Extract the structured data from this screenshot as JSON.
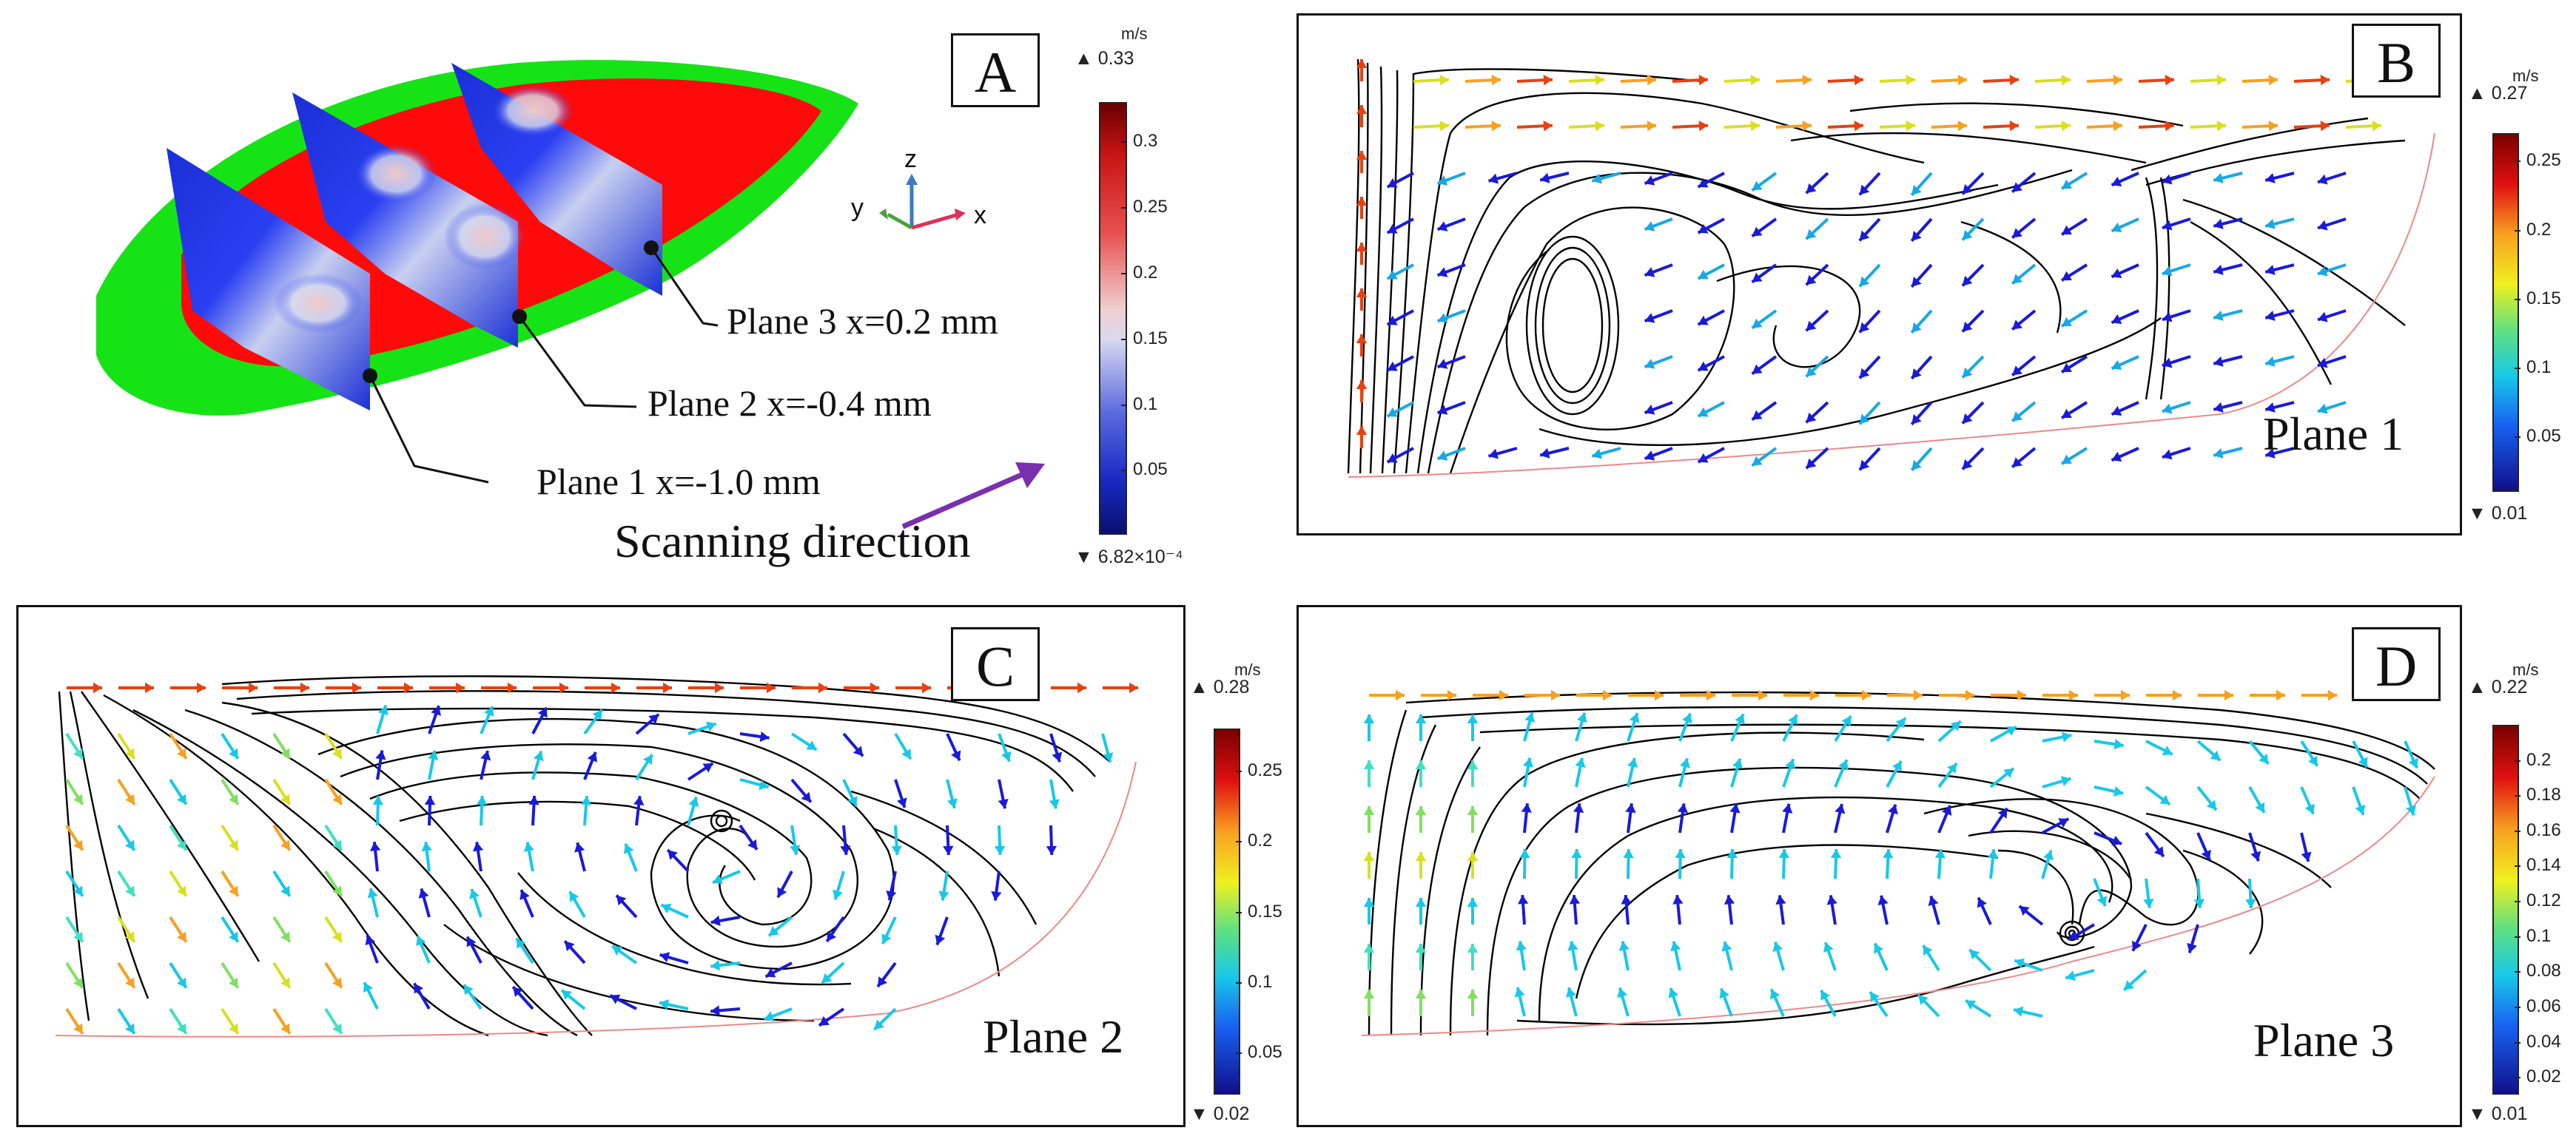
{
  "panel_a": {
    "letter": "A",
    "annotations": {
      "plane1": "Plane 1 x=-1.0 mm",
      "plane2": "Plane 2 x=-0.4 mm",
      "plane3": "Plane 3 x=0.2 mm"
    },
    "scanning_direction": "Scanning direction",
    "axes": {
      "x": "x",
      "y": "y",
      "z": "z"
    },
    "colorbar": {
      "unit": "m/s",
      "max": "▲ 0.33",
      "min": "▼ 6.82×10⁻⁴",
      "ticks": [
        "0.3",
        "0.25",
        "0.2",
        "0.15",
        "0.1",
        "0.05"
      ],
      "tick_values": [
        0.3,
        0.25,
        0.2,
        0.15,
        0.1,
        0.05
      ],
      "range": [
        0.000682,
        0.33
      ],
      "palette": "thermal-wave"
    },
    "colors": {
      "pool_outer": "#16e316",
      "pool_inner": "#ff0a0a",
      "arrow": "#7a2fb0"
    }
  },
  "panel_b": {
    "letter": "B",
    "plane_label": "Plane 1",
    "colorbar": {
      "unit": "m/s",
      "max": "▲ 0.27",
      "min": "▼ 0.01",
      "ticks": [
        "0.25",
        "0.2",
        "0.15",
        "0.1",
        "0.05"
      ],
      "tick_values": [
        0.25,
        0.2,
        0.15,
        0.1,
        0.05
      ],
      "range": [
        0.01,
        0.27
      ],
      "palette": "rainbow"
    }
  },
  "panel_c": {
    "letter": "C",
    "plane_label": "Plane 2",
    "colorbar": {
      "unit": "m/s",
      "max": "▲ 0.28",
      "min": "▼ 0.02",
      "ticks": [
        "0.25",
        "0.2",
        "0.15",
        "0.1",
        "0.05"
      ],
      "tick_values": [
        0.25,
        0.2,
        0.15,
        0.1,
        0.05
      ],
      "range": [
        0.02,
        0.28
      ],
      "palette": "rainbow"
    }
  },
  "panel_d": {
    "letter": "D",
    "plane_label": "Plane 3",
    "colorbar": {
      "unit": "m/s",
      "max": "▲ 0.22",
      "min": "▼ 0.01",
      "ticks": [
        "0.2",
        "0.18",
        "0.16",
        "0.14",
        "0.12",
        "0.1",
        "0.08",
        "0.06",
        "0.04",
        "0.02"
      ],
      "tick_values": [
        0.2,
        0.18,
        0.16,
        0.14,
        0.12,
        0.1,
        0.08,
        0.06,
        0.04,
        0.02
      ],
      "range": [
        0.01,
        0.22
      ],
      "palette": "rainbow"
    }
  }
}
